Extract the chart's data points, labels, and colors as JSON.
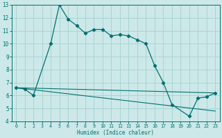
{
  "xlabel": "Humidex (Indice chaleur)",
  "background_color": "#cce8e8",
  "grid_color": "#aad4d4",
  "line_color": "#007070",
  "xlim": [
    -0.5,
    23.5
  ],
  "ylim": [
    4,
    13
  ],
  "xticks": [
    0,
    1,
    2,
    3,
    4,
    5,
    6,
    7,
    8,
    9,
    10,
    11,
    12,
    13,
    14,
    15,
    16,
    17,
    18,
    19,
    20,
    21,
    22,
    23
  ],
  "yticks": [
    4,
    5,
    6,
    7,
    8,
    9,
    10,
    11,
    12,
    13
  ],
  "series1_x": [
    0,
    1,
    2,
    4,
    5,
    6,
    7,
    8,
    9,
    10,
    11,
    12,
    13,
    14,
    15,
    16,
    17,
    18,
    20,
    21,
    22,
    23
  ],
  "series1_y": [
    6.6,
    6.5,
    6.0,
    10.0,
    13.0,
    11.9,
    11.4,
    10.8,
    11.1,
    11.1,
    10.6,
    10.7,
    10.6,
    10.3,
    10.0,
    8.3,
    7.0,
    5.3,
    4.4,
    5.8,
    5.9,
    6.2
  ],
  "series2_x": [
    0,
    23
  ],
  "series2_y": [
    6.6,
    6.2
  ],
  "series3_x": [
    0,
    23
  ],
  "series3_y": [
    6.6,
    4.8
  ]
}
